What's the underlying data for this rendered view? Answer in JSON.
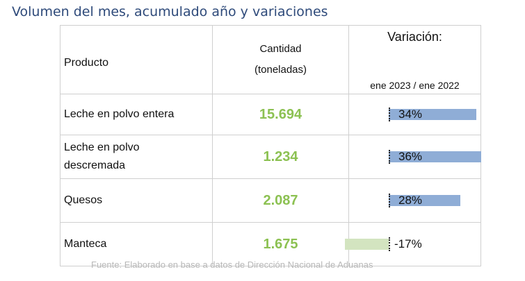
{
  "title": "Volumen del mes, acumulado año y variaciones",
  "table": {
    "headers": {
      "producto": "Producto",
      "cantidad_line1": "Cantidad",
      "cantidad_line2": "(toneladas)",
      "variacion_line1": "Variación:",
      "variacion_line2": "ene 2023 / ene 2022"
    },
    "rows": [
      {
        "producto": "Leche en polvo entera",
        "cantidad": "15.694",
        "variacion": "34%",
        "variacion_value": 34
      },
      {
        "producto_line1": "Leche en polvo",
        "producto_line2": "descremada",
        "cantidad": "1.234",
        "variacion": "36%",
        "variacion_value": 36
      },
      {
        "producto": "Quesos",
        "cantidad": "2.087",
        "variacion": "28%",
        "variacion_value": 28
      },
      {
        "producto": "Manteca",
        "cantidad": "1.675",
        "variacion": "-17%",
        "variacion_value": -17
      }
    ],
    "colors": {
      "quantity": "#8cc152",
      "bar_positive": "#8fadd6",
      "bar_negative": "#d3e4c0"
    }
  },
  "source": "Fuente: Elaborado en base a datos de Dirección Nacional de Aduanas"
}
